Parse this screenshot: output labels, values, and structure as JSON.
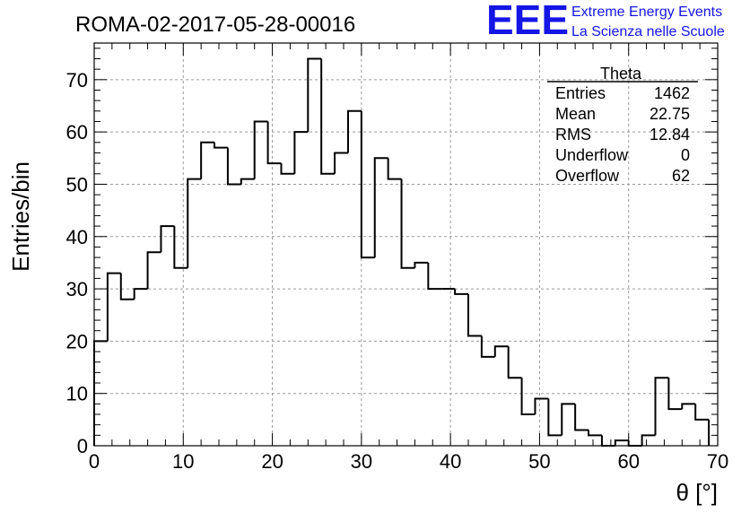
{
  "title": "ROMA-02-2017-05-28-00016",
  "logo": {
    "mark": "EEE",
    "line1": "Extreme Energy Events",
    "line2": "La Scienza nelle Scuole",
    "color": "#1515e6"
  },
  "stats": {
    "title": "Theta",
    "rows": [
      {
        "label": "Entries",
        "value": "1462"
      },
      {
        "label": "Mean",
        "value": "22.75"
      },
      {
        "label": "RMS",
        "value": "12.84"
      },
      {
        "label": "Underflow",
        "value": "0"
      },
      {
        "label": "Overflow",
        "value": "62"
      }
    ]
  },
  "chart_data": {
    "type": "bar",
    "histogram": true,
    "title": "ROMA-02-2017-05-28-00016",
    "xlabel": "θ [°]",
    "ylabel": "Entries/bin",
    "xlim": [
      0,
      70
    ],
    "ylim": [
      0,
      77
    ],
    "grid": true,
    "bin_width": 1.5,
    "bin_edges_start": 0,
    "values": [
      20,
      33,
      28,
      30,
      37,
      42,
      34,
      51,
      58,
      57,
      50,
      51,
      62,
      54,
      52,
      60,
      74,
      52,
      56,
      64,
      36,
      55,
      51,
      34,
      35,
      30,
      30,
      29,
      21,
      17,
      19,
      13,
      6,
      9,
      2,
      8,
      3,
      2,
      0,
      1,
      0,
      2,
      13,
      7,
      8,
      5
    ],
    "x_ticks": [
      0,
      10,
      20,
      30,
      40,
      50,
      60,
      70
    ],
    "x_tick_labels": [
      "0",
      "10",
      "20",
      "30",
      "40",
      "50",
      "60",
      "70"
    ],
    "y_ticks": [
      0,
      10,
      20,
      30,
      40,
      50,
      60,
      70
    ],
    "y_tick_labels": [
      "0",
      "10",
      "20",
      "30",
      "40",
      "50",
      "60",
      "70"
    ]
  }
}
